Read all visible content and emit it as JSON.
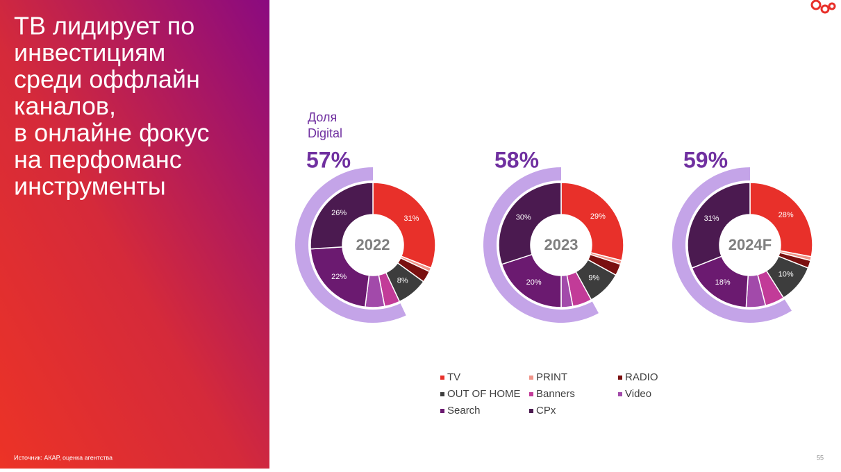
{
  "title": [
    "ТВ лидирует по",
    "инвестициям",
    "среди оффлайн",
    "каналов,",
    "в онлайне фокус",
    "на перфоманс",
    "инструменты"
  ],
  "digital_caption": [
    "Доля",
    "Digital"
  ],
  "source": "Источник: АКАР, оценка агентства",
  "page_number": "55",
  "chart_data": [
    {
      "type": "donut",
      "title": "2022",
      "categories": [
        "TV",
        "PRINT",
        "RADIO",
        "OUT OF HOME",
        "Banners",
        "Video",
        "Search",
        "CPx"
      ],
      "colors": [
        "#e8302a",
        "#f0958a",
        "#7a1010",
        "#3d3d3d",
        "#c23b98",
        "#a24aaa",
        "#6b1a70",
        "#4b1a50"
      ],
      "values": [
        31,
        1,
        3,
        8,
        4,
        5,
        22,
        26
      ],
      "value_labels": [
        "31%",
        null,
        null,
        "8%",
        null,
        null,
        "22%",
        "26%"
      ],
      "digital_share": 57,
      "digital_share_label": "57%",
      "digital_color": "#c4a4e8"
    },
    {
      "type": "donut",
      "title": "2023",
      "categories": [
        "TV",
        "PRINT",
        "RADIO",
        "OUT OF HOME",
        "Banners",
        "Video",
        "Search",
        "CPx"
      ],
      "colors": [
        "#e8302a",
        "#f0958a",
        "#7a1010",
        "#3d3d3d",
        "#c23b98",
        "#a24aaa",
        "#6b1a70",
        "#4b1a50"
      ],
      "values": [
        29,
        1,
        3,
        9,
        5,
        3,
        20,
        30
      ],
      "value_labels": [
        "29%",
        null,
        null,
        "9%",
        null,
        null,
        "20%",
        "30%"
      ],
      "digital_share": 58,
      "digital_share_label": "58%",
      "digital_color": "#c4a4e8"
    },
    {
      "type": "donut",
      "title": "2024F",
      "categories": [
        "TV",
        "PRINT",
        "RADIO",
        "OUT OF HOME",
        "Banners",
        "Video",
        "Search",
        "CPx"
      ],
      "colors": [
        "#e8302a",
        "#f0958a",
        "#7a1010",
        "#3d3d3d",
        "#c23b98",
        "#a24aaa",
        "#6b1a70",
        "#4b1a50"
      ],
      "values": [
        28,
        1,
        2,
        10,
        5,
        5,
        18,
        31
      ],
      "value_labels": [
        "28%",
        null,
        null,
        "10%",
        null,
        null,
        "18%",
        "31%"
      ],
      "digital_share": 59,
      "digital_share_label": "59%",
      "digital_color": "#c4a4e8"
    }
  ]
}
